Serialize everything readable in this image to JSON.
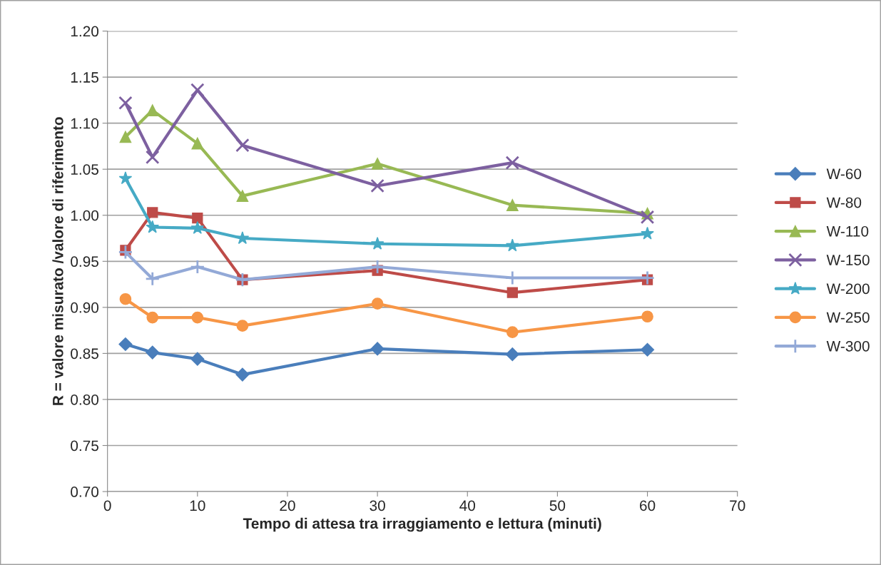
{
  "chart_data": {
    "type": "line",
    "xlabel": "Tempo di attesa tra irraggiamento e lettura (minuti)",
    "ylabel": "R = valore misurato /valore di riferimento",
    "x": [
      2,
      5,
      10,
      15,
      30,
      45,
      60
    ],
    "series": [
      {
        "name": "W-60",
        "color": "#4a7ebb",
        "marker": "diamond",
        "values": [
          0.86,
          0.851,
          0.844,
          0.827,
          0.855,
          0.849,
          0.854
        ]
      },
      {
        "name": "W-80",
        "color": "#be4b48",
        "marker": "square",
        "values": [
          0.962,
          1.003,
          0.997,
          0.93,
          0.94,
          0.916,
          0.93
        ]
      },
      {
        "name": "W-110",
        "color": "#98b954",
        "marker": "triangle",
        "values": [
          1.085,
          1.114,
          1.078,
          1.021,
          1.056,
          1.011,
          1.002
        ]
      },
      {
        "name": "W-150",
        "color": "#7d60a0",
        "marker": "cross",
        "values": [
          1.122,
          1.063,
          1.136,
          1.076,
          1.032,
          1.057,
          0.998
        ]
      },
      {
        "name": "W-200",
        "color": "#46aac5",
        "marker": "star",
        "values": [
          1.04,
          0.987,
          0.986,
          0.975,
          0.969,
          0.967,
          0.98
        ]
      },
      {
        "name": "W-250",
        "color": "#f79646",
        "marker": "circle",
        "values": [
          0.909,
          0.889,
          0.889,
          0.88,
          0.904,
          0.873,
          0.89
        ]
      },
      {
        "name": "W-300",
        "color": "#93a9d7",
        "marker": "plus",
        "values": [
          0.96,
          0.931,
          0.944,
          0.93,
          0.944,
          0.932,
          0.932
        ]
      }
    ],
    "xlim": [
      0,
      70
    ],
    "xticks": [
      0,
      10,
      20,
      30,
      40,
      50,
      60,
      70
    ],
    "ylim": [
      0.7,
      1.2
    ],
    "yticks": [
      {
        "value": 0.7,
        "label": "0.70"
      },
      {
        "value": 0.75,
        "label": "0.75"
      },
      {
        "value": 0.8,
        "label": "0.80"
      },
      {
        "value": 0.85,
        "label": "0.85"
      },
      {
        "value": 0.9,
        "label": "0.90"
      },
      {
        "value": 0.95,
        "label": "0.95"
      },
      {
        "value": 1.0,
        "label": "1.00"
      },
      {
        "value": 1.05,
        "label": "1.05"
      },
      {
        "value": 1.1,
        "label": "1.10"
      },
      {
        "value": 1.15,
        "label": "1.15"
      },
      {
        "value": 1.2,
        "label": "1.20"
      }
    ],
    "grid": "y",
    "legend": "right",
    "line_style": "solid"
  }
}
